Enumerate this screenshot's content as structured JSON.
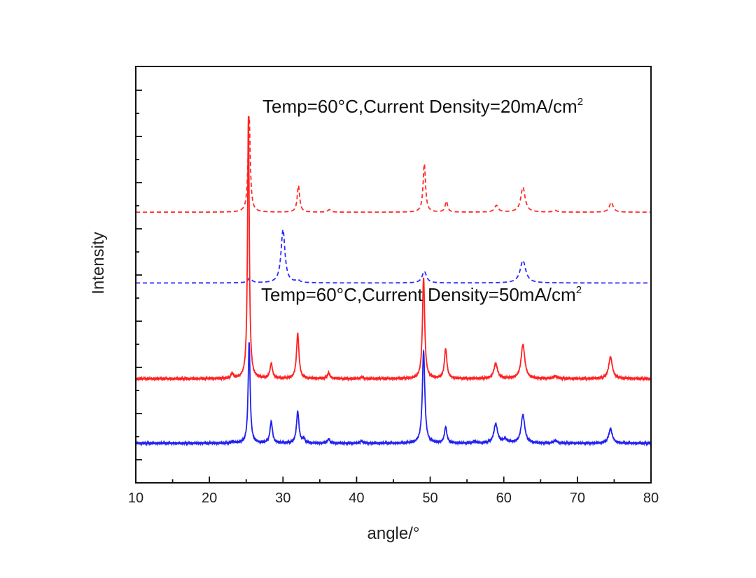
{
  "chart_data": {
    "type": "line",
    "title": "",
    "xlabel": "angle/°",
    "ylabel": "Intensity",
    "xlim": [
      10,
      80
    ],
    "ylim": [
      0,
      1000
    ],
    "xticks": [
      10,
      20,
      30,
      40,
      50,
      60,
      70,
      80
    ],
    "yticks_unlabeled": true,
    "annotations": [
      {
        "text": "Temp=60°C,Current Density=20mA/cm",
        "sup": "2",
        "x": 17.8,
        "y": 820
      },
      {
        "text": "Temp=60°C,Current Density=50mA/cm",
        "sup": "2",
        "x": 17.6,
        "y": 400
      }
    ],
    "series": [
      {
        "name": "red-dashed",
        "color": "#ff2a2a",
        "dash": true,
        "baseline": 650,
        "peaks": [
          {
            "x": 25.4,
            "h": 230,
            "w": 0.18
          },
          {
            "x": 32.1,
            "h": 64,
            "w": 0.2
          },
          {
            "x": 36.3,
            "h": 6,
            "w": 0.25
          },
          {
            "x": 49.2,
            "h": 116,
            "w": 0.2
          },
          {
            "x": 52.2,
            "h": 26,
            "w": 0.2
          },
          {
            "x": 59.0,
            "h": 16,
            "w": 0.3
          },
          {
            "x": 62.6,
            "h": 60,
            "w": 0.35
          },
          {
            "x": 67.0,
            "h": 4,
            "w": 0.3
          },
          {
            "x": 74.6,
            "h": 24,
            "w": 0.3
          }
        ]
      },
      {
        "name": "blue-dashed",
        "color": "#2a2aff",
        "dash": true,
        "baseline": 480,
        "peaks": [
          {
            "x": 25.5,
            "h": 12,
            "w": 0.3
          },
          {
            "x": 30.0,
            "h": 128,
            "w": 0.32
          },
          {
            "x": 32.0,
            "h": 6,
            "w": 0.3
          },
          {
            "x": 49.2,
            "h": 28,
            "w": 0.35
          },
          {
            "x": 62.6,
            "h": 54,
            "w": 0.45
          }
        ]
      },
      {
        "name": "red-solid",
        "color": "#ff2222",
        "dash": false,
        "baseline": 250,
        "peaks": [
          {
            "x": 23.1,
            "h": 12,
            "w": 0.18
          },
          {
            "x": 25.3,
            "h": 630,
            "w": 0.14
          },
          {
            "x": 28.4,
            "h": 36,
            "w": 0.2
          },
          {
            "x": 32.0,
            "h": 108,
            "w": 0.2
          },
          {
            "x": 36.2,
            "h": 14,
            "w": 0.2
          },
          {
            "x": 40.7,
            "h": 4,
            "w": 0.2
          },
          {
            "x": 49.1,
            "h": 244,
            "w": 0.18
          },
          {
            "x": 52.1,
            "h": 72,
            "w": 0.2
          },
          {
            "x": 58.9,
            "h": 36,
            "w": 0.3
          },
          {
            "x": 62.6,
            "h": 82,
            "w": 0.3
          },
          {
            "x": 67.0,
            "h": 6,
            "w": 0.3
          },
          {
            "x": 74.5,
            "h": 52,
            "w": 0.3
          }
        ]
      },
      {
        "name": "blue-solid",
        "color": "#2222ee",
        "dash": false,
        "baseline": 95,
        "peaks": [
          {
            "x": 23.2,
            "h": 4,
            "w": 0.2
          },
          {
            "x": 25.4,
            "h": 242,
            "w": 0.16
          },
          {
            "x": 28.4,
            "h": 52,
            "w": 0.2
          },
          {
            "x": 32.0,
            "h": 76,
            "w": 0.2
          },
          {
            "x": 32.8,
            "h": 10,
            "w": 0.2
          },
          {
            "x": 36.2,
            "h": 10,
            "w": 0.2
          },
          {
            "x": 40.7,
            "h": 6,
            "w": 0.2
          },
          {
            "x": 49.1,
            "h": 222,
            "w": 0.2
          },
          {
            "x": 52.1,
            "h": 38,
            "w": 0.2
          },
          {
            "x": 56.0,
            "h": 4,
            "w": 0.3
          },
          {
            "x": 58.9,
            "h": 46,
            "w": 0.3
          },
          {
            "x": 60.2,
            "h": 8,
            "w": 0.4
          },
          {
            "x": 62.6,
            "h": 68,
            "w": 0.3
          },
          {
            "x": 67.0,
            "h": 6,
            "w": 0.3
          },
          {
            "x": 74.5,
            "h": 34,
            "w": 0.3
          }
        ]
      }
    ]
  }
}
